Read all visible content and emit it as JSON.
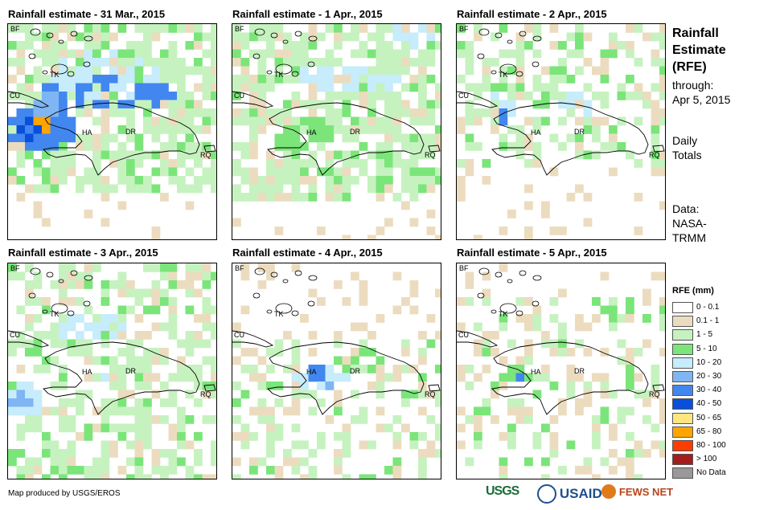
{
  "panels": [
    {
      "title": "Rainfall estimate - 31 Mar., 2015"
    },
    {
      "title": "Rainfall estimate - 1 Apr., 2015"
    },
    {
      "title": "Rainfall estimate - 2 Apr., 2015"
    },
    {
      "title": "Rainfall estimate - 3 Apr., 2015"
    },
    {
      "title": "Rainfall estimate - 4 Apr., 2015"
    },
    {
      "title": "Rainfall estimate - 5 Apr., 2015"
    }
  ],
  "map_labels": {
    "bf": "BF",
    "tk": "TK",
    "cu": "CU",
    "ha": "HA",
    "dr": "DR",
    "rq": "RQ"
  },
  "sidebar": {
    "title_1": "Rainfall",
    "title_2": "Estimate",
    "title_3": "(RFE)",
    "through_label": "through:",
    "through_date": "Apr 5, 2015",
    "daily_1": "Daily",
    "daily_2": "Totals",
    "data_1": "Data:",
    "data_2": "NASA-",
    "data_3": "TRMM"
  },
  "legend": {
    "title": "RFE (mm)",
    "items": [
      {
        "label": "0 - 0.1",
        "color": "#ffffff"
      },
      {
        "label": "0.1 - 1",
        "color": "#ecdcbf"
      },
      {
        "label": "1 - 5",
        "color": "#c6f2c0"
      },
      {
        "label": "5 - 10",
        "color": "#7be57a"
      },
      {
        "label": "10 - 20",
        "color": "#c7ecfb"
      },
      {
        "label": "20 - 30",
        "color": "#7fb5f2"
      },
      {
        "label": "30 - 40",
        "color": "#4287ef"
      },
      {
        "label": "40 - 50",
        "color": "#0a4fd9"
      },
      {
        "label": "50 - 65",
        "color": "#ffe680"
      },
      {
        "label": "65 - 80",
        "color": "#ffa500"
      },
      {
        "label": "80 - 100",
        "color": "#ff3c00"
      },
      {
        "label": "> 100",
        "color": "#a31d1d"
      },
      {
        "label": "No Data",
        "color": "#999999"
      }
    ]
  },
  "footer": {
    "credit": "Map produced by USGS/EROS",
    "logo_usgs": "USGS",
    "logo_usaid": "USAID",
    "logo_fews": "FEWS NET"
  }
}
